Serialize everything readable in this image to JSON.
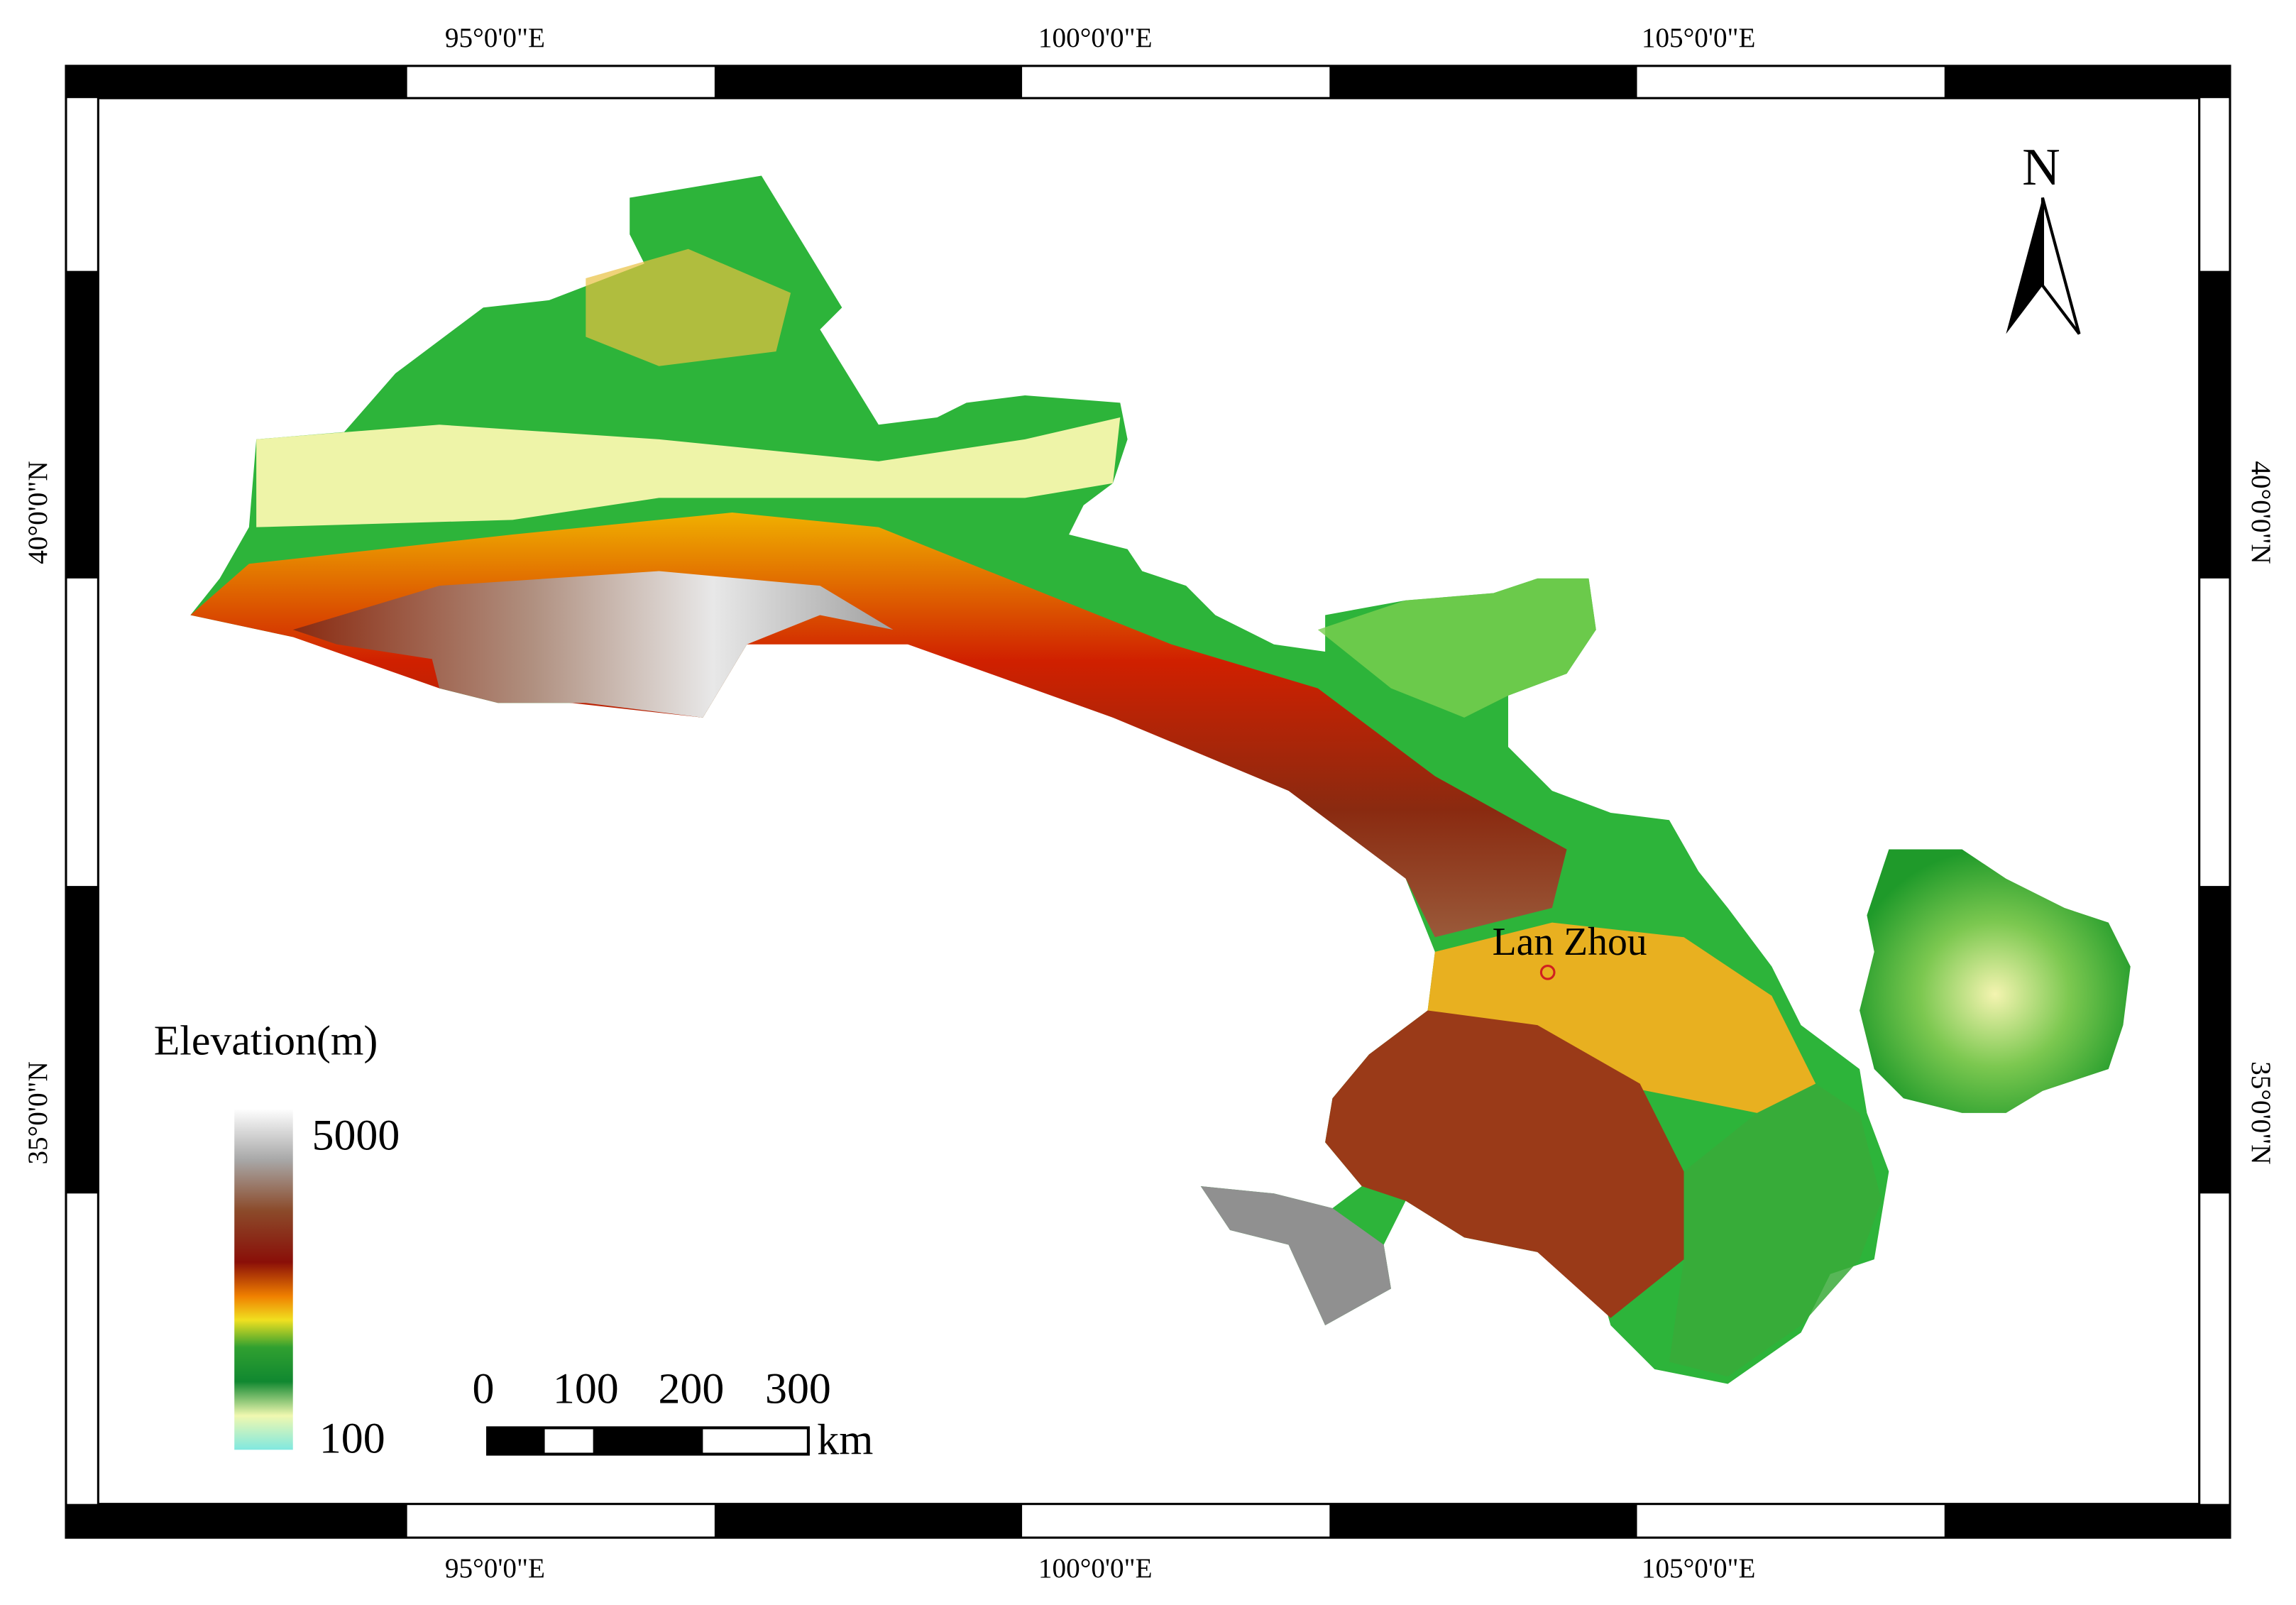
{
  "map": {
    "graticule": {
      "longitude": [
        "95°0'0\"E",
        "100°0'0\"E",
        "105°0'0\"E"
      ],
      "latitude": [
        "40°0'0\"N",
        "35°0'0\"N"
      ]
    },
    "north_arrow": "N",
    "legend": {
      "title": "Elevation(m)",
      "max": 5000,
      "min": 100
    },
    "scale_bar": {
      "labels": [
        0,
        100,
        200,
        300
      ],
      "unit": "km"
    },
    "places": [
      {
        "label": "Lan Zhou"
      }
    ]
  }
}
